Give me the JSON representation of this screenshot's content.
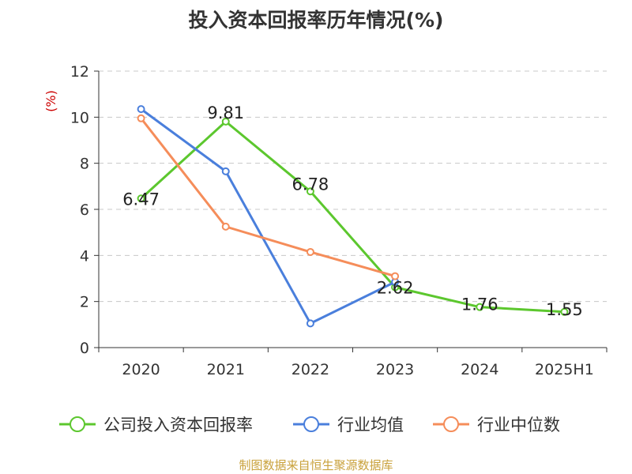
{
  "title": "投入资本回报率历年情况(%)",
  "source": "制图数据来自恒生聚源数据库",
  "chart_data": {
    "type": "line",
    "title": "投入资本回报率历年情况(%)",
    "ylabel": "(%)",
    "xlabel": "",
    "categories": [
      "2020",
      "2021",
      "2022",
      "2023",
      "2024",
      "2025H1"
    ],
    "ylim": [
      0,
      12
    ],
    "yticks": [
      0,
      2,
      4,
      6,
      8,
      10,
      12
    ],
    "grid": true,
    "legend_position": "bottom",
    "series": [
      {
        "name": "公司投入资本回报率",
        "color": "#5cc72e",
        "labeled": true,
        "values": [
          6.47,
          9.81,
          6.78,
          2.62,
          1.76,
          1.55
        ],
        "labels": [
          "6.47",
          "9.81",
          "6.78",
          "2.62",
          "1.76",
          "1.55"
        ]
      },
      {
        "name": "行业均值",
        "color": "#4a7fdc",
        "labeled": false,
        "values": [
          10.35,
          7.65,
          1.05,
          2.85,
          null,
          null
        ]
      },
      {
        "name": "行业中位数",
        "color": "#f58d5a",
        "labeled": false,
        "values": [
          9.95,
          5.25,
          4.15,
          3.1,
          null,
          null
        ]
      }
    ]
  }
}
